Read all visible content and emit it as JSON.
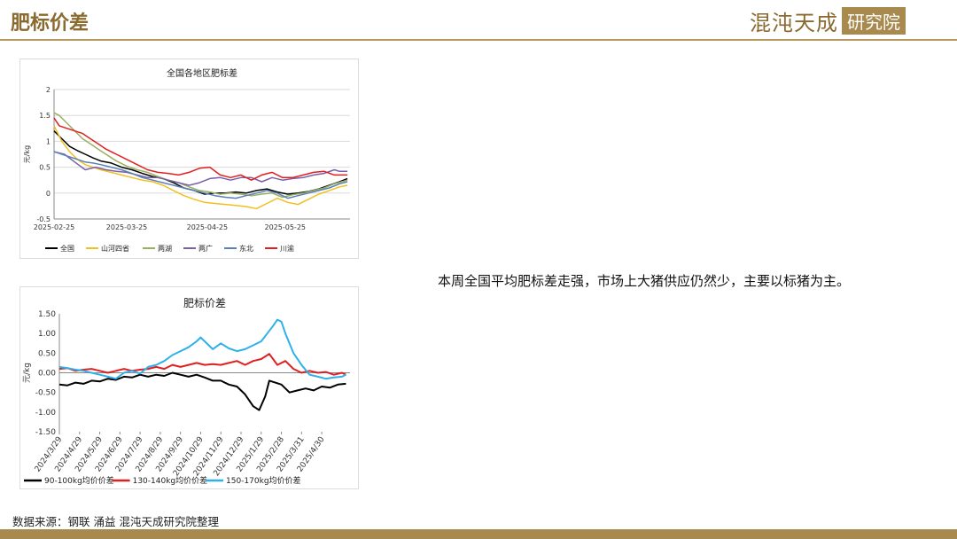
{
  "header": {
    "title": "肥标价差",
    "brand_name": "混沌天成",
    "brand_box": "研究院"
  },
  "commentary": "本周全国平均肥标差走强，市场上大猪供应仍然少，主要以标猪为主。",
  "source": "数据来源：钢联 涌益 混沌天成研究院整理",
  "chart_data": [
    {
      "type": "line",
      "title": "全国各地区肥标差",
      "ylabel": "元/kg",
      "ylim": [
        -0.5,
        2
      ],
      "yticks": [
        -0.5,
        0,
        0.5,
        1,
        1.5,
        2
      ],
      "ytick_labels": [
        "-0.5",
        "0",
        "0.5",
        "1",
        "1.5",
        "2"
      ],
      "xlim": [
        0,
        114
      ],
      "xticks": [
        {
          "x": 0,
          "label": "2025-02-25"
        },
        {
          "x": 28,
          "label": "2025-03-25"
        },
        {
          "x": 59,
          "label": "2025-04-25"
        },
        {
          "x": 89,
          "label": "2025-05-25"
        }
      ],
      "grid": true,
      "legend": "bottom",
      "series": [
        {
          "name": "全国",
          "color": "#000000",
          "x": [
            0,
            3,
            6,
            9,
            12,
            15,
            18,
            22,
            26,
            30,
            34,
            38,
            42,
            46,
            50,
            54,
            58,
            62,
            66,
            70,
            74,
            78,
            82,
            86,
            90,
            94,
            98,
            102,
            106,
            110,
            113
          ],
          "values": [
            1.2,
            1.05,
            0.9,
            0.82,
            0.75,
            0.68,
            0.62,
            0.58,
            0.5,
            0.45,
            0.38,
            0.32,
            0.28,
            0.2,
            0.1,
            0.05,
            -0.02,
            0.0,
            0.0,
            0.02,
            0.0,
            0.05,
            0.08,
            0.02,
            -0.02,
            0.0,
            0.03,
            0.08,
            0.15,
            0.22,
            0.28
          ]
        },
        {
          "name": "山河四省",
          "color": "#f0c020",
          "x": [
            0,
            3,
            6,
            9,
            12,
            15,
            18,
            22,
            26,
            30,
            34,
            38,
            42,
            46,
            50,
            54,
            58,
            62,
            66,
            70,
            74,
            78,
            82,
            86,
            90,
            94,
            98,
            102,
            106,
            110,
            113
          ],
          "values": [
            1.3,
            1.0,
            0.8,
            0.65,
            0.55,
            0.5,
            0.45,
            0.4,
            0.35,
            0.3,
            0.25,
            0.22,
            0.15,
            0.05,
            -0.05,
            -0.12,
            -0.18,
            -0.2,
            -0.22,
            -0.24,
            -0.26,
            -0.3,
            -0.2,
            -0.1,
            -0.18,
            -0.22,
            -0.12,
            -0.02,
            0.05,
            0.12,
            0.15
          ]
        },
        {
          "name": "两湖",
          "color": "#99b060",
          "x": [
            0,
            2,
            5,
            8,
            11,
            14,
            17,
            20,
            24,
            28,
            32,
            36,
            40,
            44,
            48,
            52,
            56,
            60,
            64,
            68,
            72,
            76,
            80,
            84,
            88,
            92,
            96,
            100,
            104,
            108,
            113
          ],
          "values": [
            1.55,
            1.5,
            1.35,
            1.2,
            1.05,
            0.95,
            0.85,
            0.75,
            0.62,
            0.52,
            0.45,
            0.4,
            0.32,
            0.25,
            0.2,
            0.12,
            0.05,
            0.02,
            -0.02,
            0.0,
            -0.02,
            -0.05,
            -0.02,
            0.0,
            -0.08,
            -0.03,
            0.0,
            0.05,
            0.1,
            0.18,
            0.25
          ]
        },
        {
          "name": "两广",
          "color": "#7a60a8",
          "x": [
            0,
            4,
            8,
            12,
            16,
            20,
            24,
            28,
            32,
            36,
            40,
            44,
            48,
            52,
            56,
            60,
            64,
            68,
            72,
            76,
            80,
            84,
            88,
            92,
            96,
            100,
            104,
            108,
            110,
            113
          ],
          "values": [
            0.8,
            0.75,
            0.6,
            0.45,
            0.5,
            0.45,
            0.42,
            0.4,
            0.35,
            0.3,
            0.3,
            0.25,
            0.2,
            0.15,
            0.2,
            0.28,
            0.3,
            0.25,
            0.3,
            0.3,
            0.22,
            0.3,
            0.25,
            0.28,
            0.3,
            0.35,
            0.38,
            0.45,
            0.42,
            0.42
          ]
        },
        {
          "name": "东北",
          "color": "#5a80b8",
          "x": [
            0,
            3,
            6,
            9,
            12,
            15,
            18,
            22,
            26,
            30,
            34,
            38,
            42,
            46,
            50,
            54,
            58,
            62,
            66,
            70,
            74,
            78,
            82,
            86,
            90,
            94,
            98,
            102,
            106,
            110,
            113
          ],
          "values": [
            0.8,
            0.75,
            0.7,
            0.65,
            0.6,
            0.58,
            0.55,
            0.5,
            0.45,
            0.38,
            0.3,
            0.25,
            0.2,
            0.15,
            0.1,
            0.05,
            0.0,
            -0.05,
            -0.08,
            -0.1,
            -0.05,
            0.0,
            0.05,
            0.0,
            -0.1,
            -0.05,
            0.0,
            0.05,
            0.1,
            0.18,
            0.22
          ]
        },
        {
          "name": "川渝",
          "color": "#e02020",
          "x": [
            0,
            2,
            5,
            8,
            11,
            14,
            17,
            20,
            24,
            28,
            32,
            36,
            40,
            44,
            48,
            52,
            56,
            60,
            64,
            68,
            72,
            76,
            80,
            84,
            88,
            92,
            96,
            100,
            104,
            108,
            113
          ],
          "values": [
            1.45,
            1.3,
            1.25,
            1.2,
            1.15,
            1.05,
            0.95,
            0.85,
            0.75,
            0.65,
            0.55,
            0.45,
            0.4,
            0.38,
            0.35,
            0.4,
            0.48,
            0.5,
            0.35,
            0.3,
            0.35,
            0.25,
            0.35,
            0.4,
            0.3,
            0.3,
            0.35,
            0.4,
            0.42,
            0.35,
            0.35
          ]
        }
      ]
    },
    {
      "type": "line",
      "title": "肥标价差",
      "ylabel": "元/kg",
      "ylim": [
        -1.5,
        1.5
      ],
      "yticks": [
        -1.5,
        -1.0,
        -0.5,
        0.0,
        0.5,
        1.0,
        1.5
      ],
      "ytick_labels": [
        "-1.50",
        "-1.00",
        "-0.50",
        "0.00",
        "0.50",
        "1.00",
        "1.50"
      ],
      "xlim": [
        0,
        14.4
      ],
      "xticks": [
        {
          "x": 0,
          "label": "2024/3/29"
        },
        {
          "x": 1,
          "label": "2024/4/29"
        },
        {
          "x": 2,
          "label": "2024/5/29"
        },
        {
          "x": 3,
          "label": "2024/6/29"
        },
        {
          "x": 4,
          "label": "2024/7/29"
        },
        {
          "x": 5,
          "label": "2024/8/29"
        },
        {
          "x": 6,
          "label": "2024/9/29"
        },
        {
          "x": 7,
          "label": "2024/10/29"
        },
        {
          "x": 8,
          "label": "2024/11/29"
        },
        {
          "x": 9,
          "label": "2024/12/29"
        },
        {
          "x": 10,
          "label": "2025/1/29"
        },
        {
          "x": 11,
          "label": "2025/2/28"
        },
        {
          "x": 12,
          "label": "2025/3/31"
        },
        {
          "x": 13,
          "label": "2025/4/30"
        }
      ],
      "grid": false,
      "legend": "bottom",
      "series": [
        {
          "name": "90-100kg均价价差",
          "color": "#000000",
          "x": [
            0,
            0.4,
            0.8,
            1.2,
            1.6,
            2.0,
            2.4,
            2.8,
            3.2,
            3.6,
            4.0,
            4.4,
            4.8,
            5.2,
            5.6,
            6.0,
            6.4,
            6.8,
            7.2,
            7.6,
            8.0,
            8.4,
            8.8,
            9.2,
            9.6,
            9.9,
            10.2,
            10.4,
            10.7,
            11.0,
            11.4,
            11.8,
            12.2,
            12.6,
            13.0,
            13.4,
            13.8,
            14.2
          ],
          "values": [
            -0.3,
            -0.32,
            -0.25,
            -0.28,
            -0.2,
            -0.22,
            -0.15,
            -0.18,
            -0.1,
            -0.12,
            -0.05,
            -0.1,
            -0.05,
            -0.08,
            0.0,
            -0.05,
            -0.1,
            -0.05,
            -0.12,
            -0.2,
            -0.2,
            -0.3,
            -0.35,
            -0.55,
            -0.85,
            -0.95,
            -0.6,
            -0.2,
            -0.25,
            -0.3,
            -0.5,
            -0.45,
            -0.4,
            -0.45,
            -0.35,
            -0.38,
            -0.3,
            -0.28
          ]
        },
        {
          "name": "130-140kg均价价差",
          "color": "#e02020",
          "x": [
            0,
            0.4,
            0.8,
            1.2,
            1.6,
            2.0,
            2.4,
            2.8,
            3.2,
            3.6,
            4.0,
            4.4,
            4.8,
            5.2,
            5.6,
            6.0,
            6.4,
            6.8,
            7.2,
            7.6,
            8.0,
            8.4,
            8.8,
            9.2,
            9.6,
            10.0,
            10.4,
            10.8,
            11.2,
            11.6,
            12.0,
            12.4,
            12.8,
            13.2,
            13.6,
            14.0,
            14.2
          ],
          "values": [
            0.1,
            0.12,
            0.05,
            0.08,
            0.1,
            0.05,
            0.0,
            0.05,
            0.1,
            0.05,
            0.08,
            0.1,
            0.15,
            0.1,
            0.2,
            0.15,
            0.2,
            0.25,
            0.2,
            0.22,
            0.2,
            0.25,
            0.3,
            0.2,
            0.3,
            0.35,
            0.48,
            0.2,
            0.3,
            0.1,
            0.0,
            0.05,
            0.0,
            0.02,
            -0.05,
            0.0,
            -0.05
          ]
        },
        {
          "name": "150-170kg均价价差",
          "color": "#30b0e8",
          "x": [
            0,
            0.4,
            0.8,
            1.2,
            1.6,
            2.0,
            2.4,
            2.8,
            3.2,
            3.6,
            4.0,
            4.4,
            4.8,
            5.2,
            5.6,
            6.0,
            6.4,
            6.8,
            7.0,
            7.2,
            7.6,
            8.0,
            8.4,
            8.8,
            9.2,
            9.6,
            10.0,
            10.3,
            10.6,
            10.8,
            11.0,
            11.2,
            11.6,
            12.0,
            12.4,
            12.8,
            13.2,
            13.6,
            14.0,
            14.2
          ],
          "values": [
            0.15,
            0.12,
            0.08,
            0.05,
            0.0,
            -0.05,
            -0.1,
            -0.15,
            0.0,
            0.05,
            -0.02,
            0.15,
            0.2,
            0.3,
            0.45,
            0.55,
            0.65,
            0.8,
            0.9,
            0.8,
            0.6,
            0.75,
            0.62,
            0.55,
            0.6,
            0.7,
            0.8,
            1.0,
            1.2,
            1.35,
            1.3,
            1.0,
            0.5,
            0.2,
            -0.05,
            -0.1,
            -0.15,
            -0.12,
            -0.1,
            -0.05
          ]
        }
      ]
    }
  ]
}
